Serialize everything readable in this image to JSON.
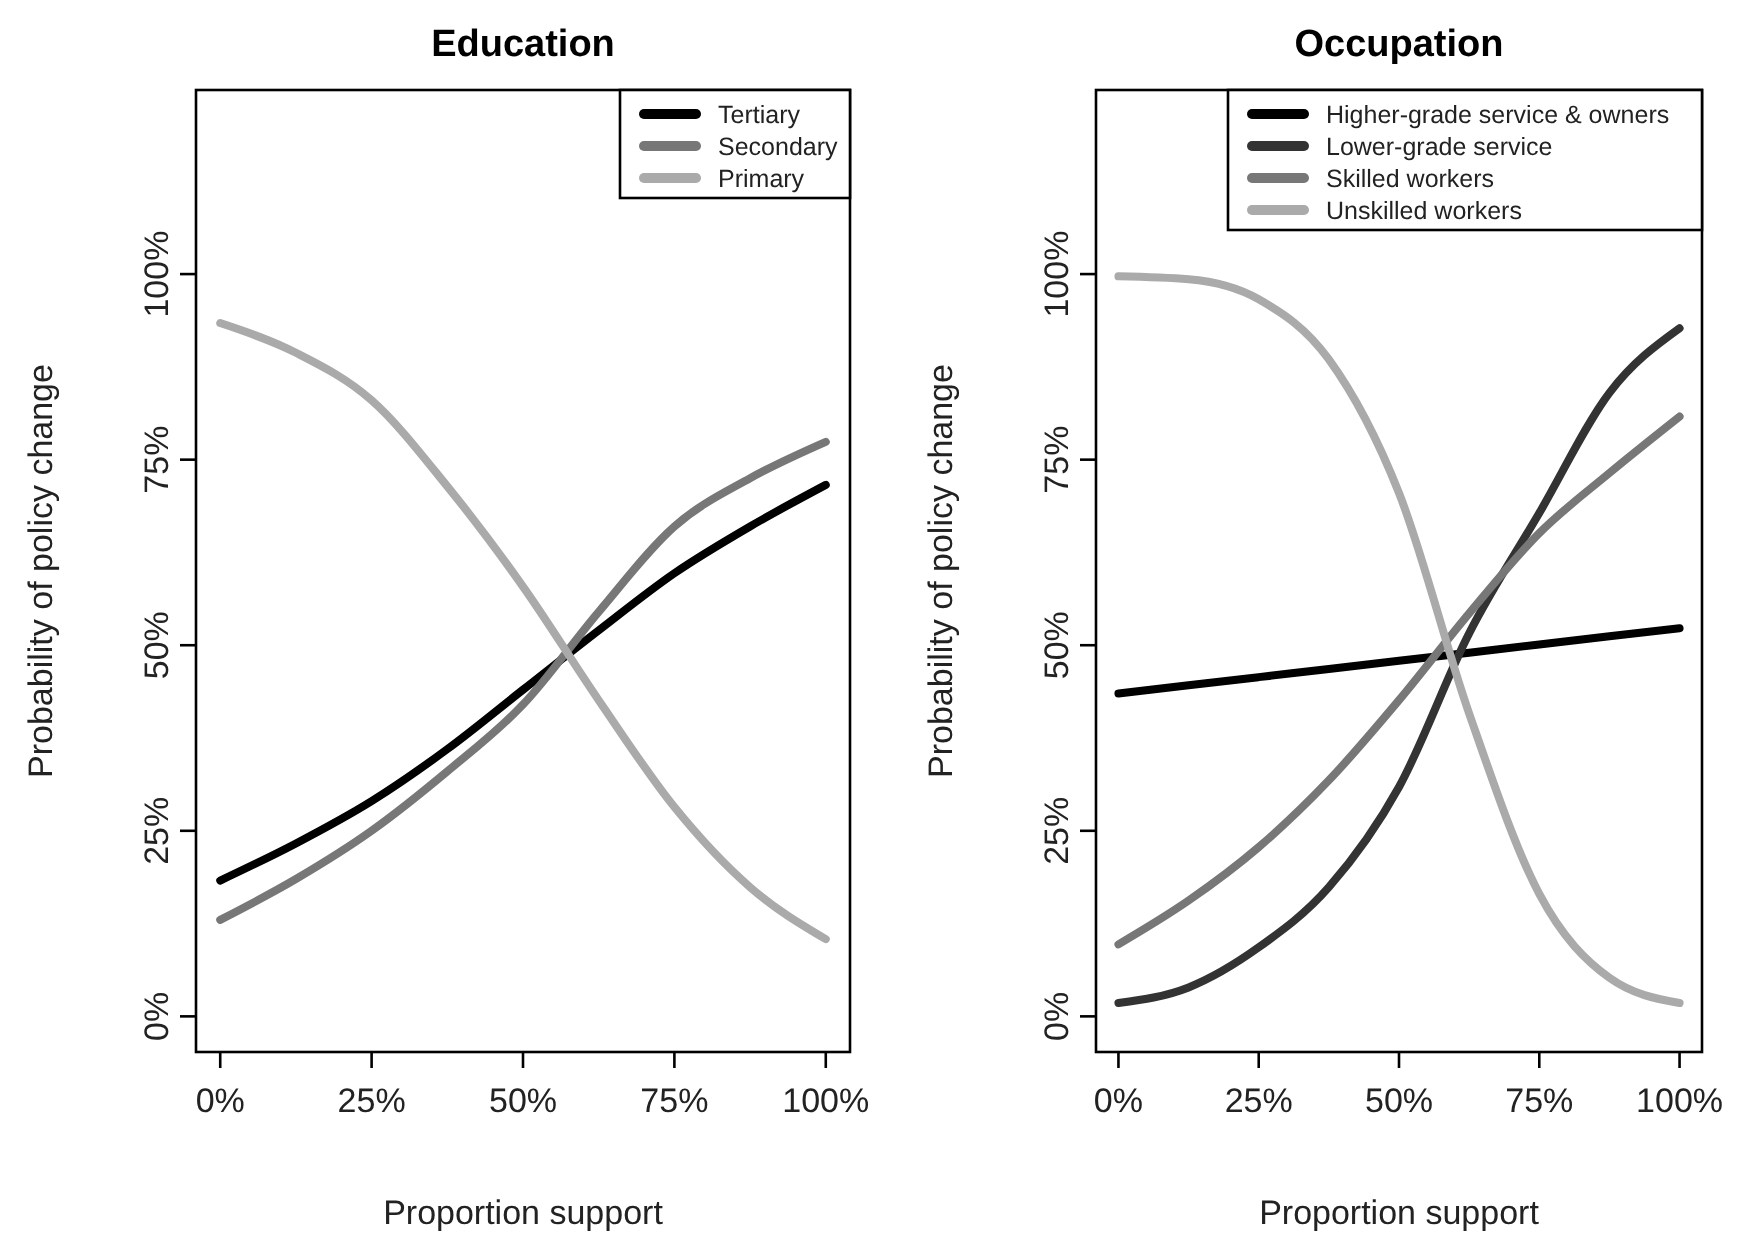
{
  "chart_data": [
    {
      "type": "line",
      "title": "Education",
      "xlabel": "Proportion support",
      "ylabel": "Probability of policy change",
      "x": [
        0,
        12.5,
        25,
        37.5,
        50,
        62.5,
        75,
        87.5,
        100
      ],
      "series": [
        {
          "name": "Tertiary",
          "color": "#000000",
          "values": [
            18.3,
            23.3,
            29,
            36,
            44,
            52,
            59.7,
            66,
            71.6
          ]
        },
        {
          "name": "Secondary",
          "color": "#777777",
          "values": [
            13,
            18.5,
            25,
            33,
            42,
            54.5,
            66,
            72.5,
            77.4
          ]
        },
        {
          "name": "Primary",
          "color": "#aaaaaa",
          "values": [
            93.4,
            89.4,
            83,
            71.4,
            57.9,
            42.6,
            28.2,
            17.4,
            10.4
          ]
        }
      ],
      "xlim": [
        -4,
        104
      ],
      "ylim": [
        -4.8,
        124.8
      ],
      "xticks": [
        {
          "value": 0,
          "label": "0%"
        },
        {
          "value": 25,
          "label": "25%"
        },
        {
          "value": 50,
          "label": "50%"
        },
        {
          "value": 75,
          "label": "75%"
        },
        {
          "value": 100,
          "label": "100%"
        }
      ],
      "yticks": [
        {
          "value": 0,
          "label": "0%"
        },
        {
          "value": 25,
          "label": "25%"
        },
        {
          "value": 50,
          "label": "50%"
        },
        {
          "value": 75,
          "label": "75%"
        },
        {
          "value": 100,
          "label": "100%"
        }
      ],
      "legend": "top right",
      "grid": false,
      "line_style": "solid"
    },
    {
      "type": "line",
      "title": "Occupation",
      "xlabel": "Proportion support",
      "ylabel": "Probability of policy change",
      "x": [
        0,
        12.5,
        25,
        37.5,
        50,
        62.5,
        75,
        87.5,
        100
      ],
      "series": [
        {
          "name": "Higher-grade service & owners",
          "color": "#000000",
          "values": [
            43.5,
            44.6,
            45.7,
            46.8,
            47.9,
            49,
            50.1,
            51.2,
            52.3
          ]
        },
        {
          "name": "Lower-grade service",
          "color": "#333333",
          "values": [
            1.8,
            3.9,
            9.3,
            17.4,
            30.9,
            51.6,
            67.8,
            84,
            92.7
          ]
        },
        {
          "name": "Skilled workers",
          "color": "#777777",
          "values": [
            9.7,
            15.6,
            22.8,
            31.8,
            42.6,
            54.3,
            65.1,
            73.2,
            80.8
          ]
        },
        {
          "name": "Unskilled workers",
          "color": "#aaaaaa",
          "values": [
            99.7,
            99.3,
            96.6,
            88.5,
            70.5,
            40.8,
            16.5,
            5.2,
            1.8
          ]
        }
      ],
      "xlim": [
        -4,
        104
      ],
      "ylim": [
        -4.8,
        124.8
      ],
      "xticks": [
        {
          "value": 0,
          "label": "0%"
        },
        {
          "value": 25,
          "label": "25%"
        },
        {
          "value": 50,
          "label": "50%"
        },
        {
          "value": 75,
          "label": "75%"
        },
        {
          "value": 100,
          "label": "100%"
        }
      ],
      "yticks": [
        {
          "value": 0,
          "label": "0%"
        },
        {
          "value": 25,
          "label": "25%"
        },
        {
          "value": 50,
          "label": "50%"
        },
        {
          "value": 75,
          "label": "75%"
        },
        {
          "value": 100,
          "label": "100%"
        }
      ],
      "legend": "top right",
      "grid": false,
      "line_style": "solid"
    }
  ]
}
